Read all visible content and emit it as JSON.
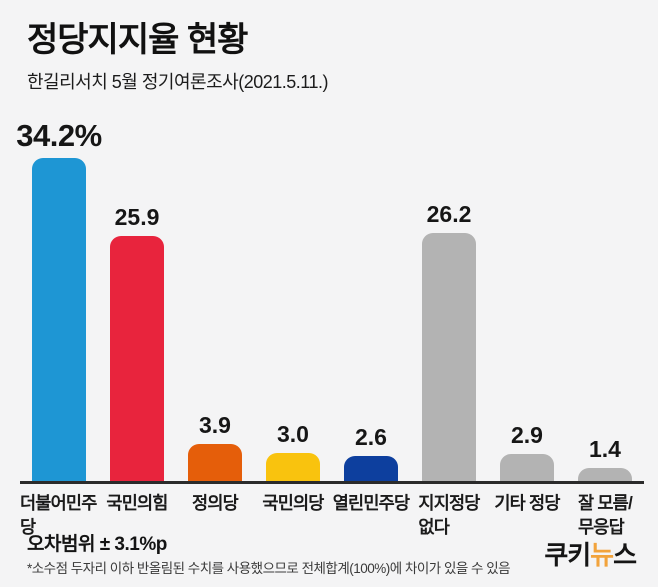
{
  "header": {
    "title": "정당지지율 현황",
    "subtitle": "한길리서치 5월 정기여론조사(2021.5.11.)"
  },
  "chart_data": {
    "type": "bar",
    "title": "정당지지율 현황",
    "subtitle": "한길리서치 5월 정기여론조사(2021.5.11.)",
    "categories": [
      "더불어민주당",
      "국민의힘",
      "정의당",
      "국민의당",
      "열린민주당",
      "지지정당\n없다",
      "기타 정당",
      "잘 모름/\n무응답"
    ],
    "values": [
      34.2,
      25.9,
      3.9,
      3.0,
      2.6,
      26.2,
      2.9,
      1.4
    ],
    "value_labels": [
      "34.2%",
      "25.9",
      "3.9",
      "3.0",
      "2.6",
      "26.2",
      "2.9",
      "1.4"
    ],
    "bar_colors": [
      "#1e96d4",
      "#e8243d",
      "#e55e0a",
      "#f9c30e",
      "#0d3f9e",
      "#b3b3b3",
      "#b3b3b3",
      "#b3b3b3"
    ],
    "unit": "%",
    "ylim": [
      0,
      36
    ],
    "grid": false,
    "legend": "none",
    "baseline_color": "#2b2b2b"
  },
  "footer": {
    "margin_of_error": "오차범위 ± 3.1%p",
    "footnote": "*소수점 두자리 이하 반올림된 수치를 사용했으므로 전체합계(100%)에 차이가 있을 수 있음",
    "logo": {
      "text": "쿠키뉴스",
      "part1": "쿠키",
      "part2": "뉴",
      "part3": "스",
      "accent_color": "#f2a33c",
      "base_color": "#151515"
    }
  },
  "colors": {
    "background": "#f4f4f5",
    "text": "#141414"
  }
}
